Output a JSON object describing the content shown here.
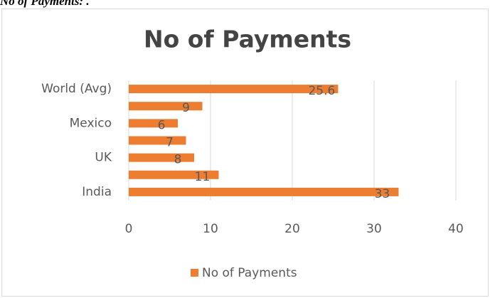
{
  "caption": "No of Payments: .",
  "chart_data": {
    "type": "barh",
    "title": "No of Payments",
    "categories": [
      "India",
      null,
      "UK",
      null,
      "Mexico",
      null,
      "World (Avg)"
    ],
    "series": [
      {
        "name": "No of Payments",
        "color": "#ED7D31",
        "values": [
          33,
          11,
          8,
          7,
          6,
          9,
          25.6
        ]
      }
    ],
    "xlim": [
      0,
      40
    ],
    "xticks": [
      0,
      10,
      20,
      30,
      40
    ],
    "grid": true,
    "legend": "bottom"
  }
}
